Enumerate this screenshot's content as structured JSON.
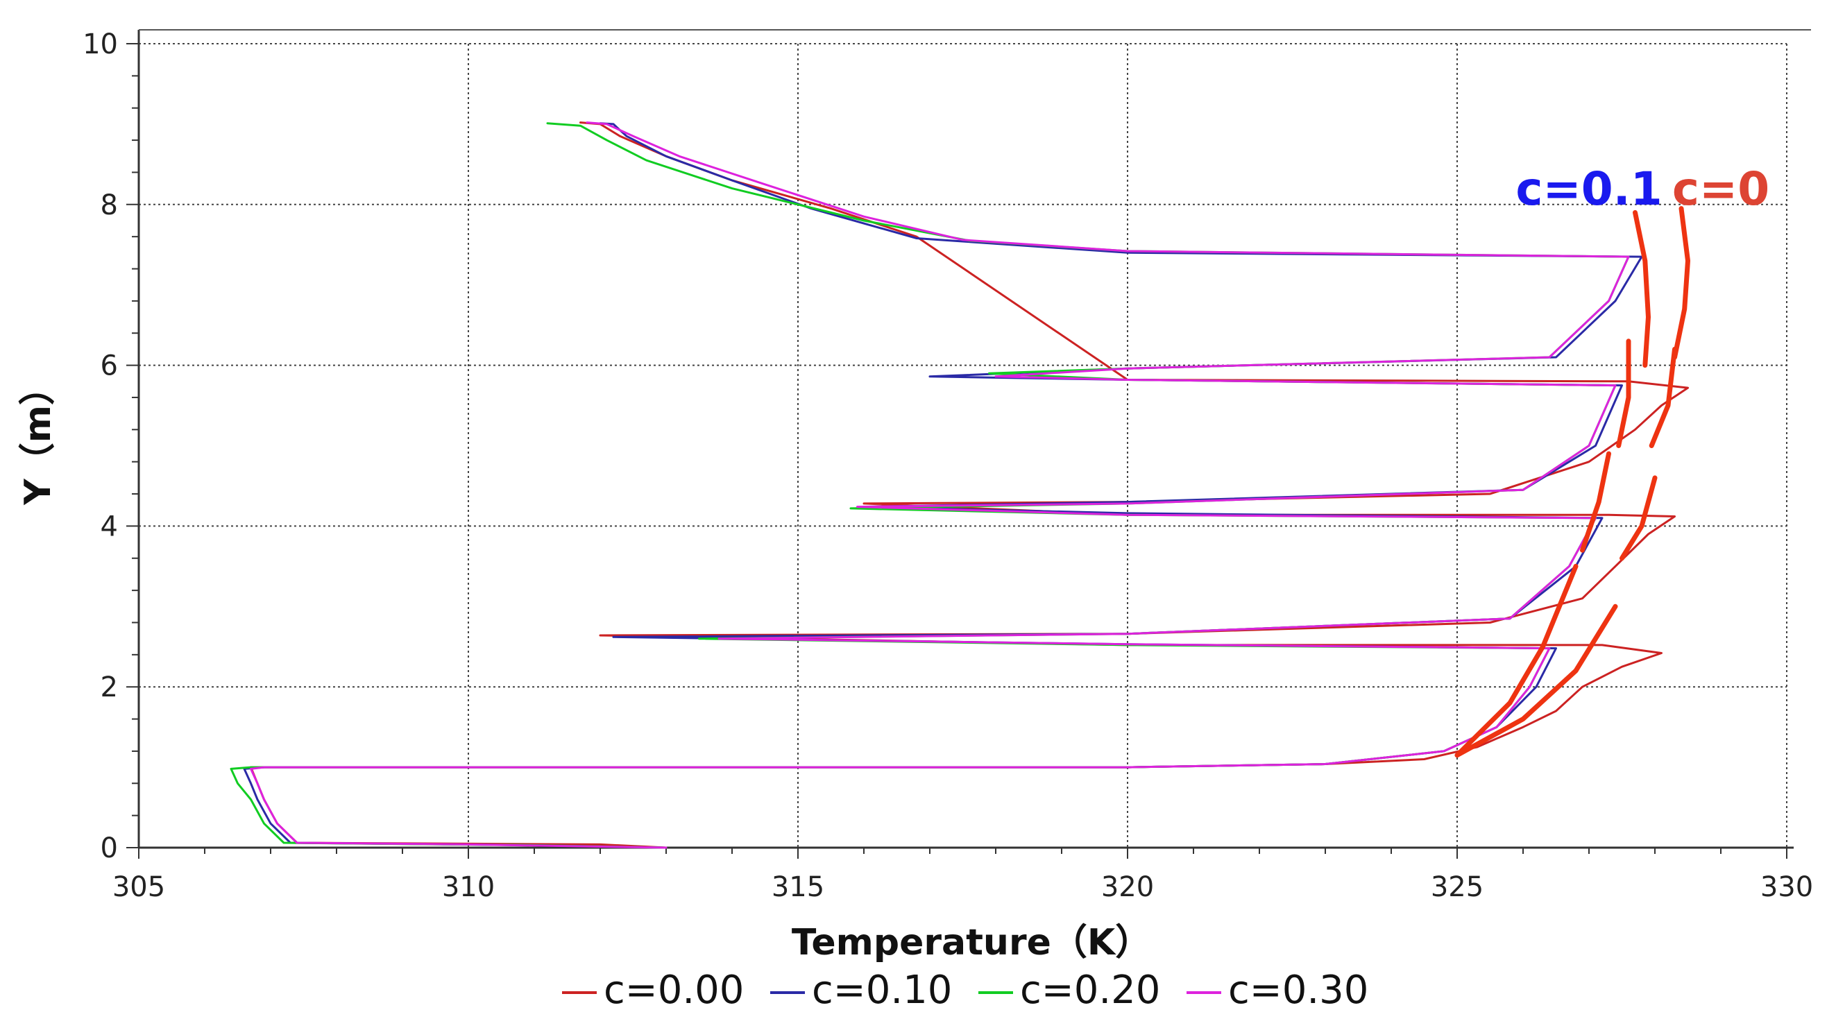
{
  "chart_data": {
    "type": "line",
    "title": "",
    "xlabel": "Temperature（K）",
    "ylabel": "Y（m）",
    "xlim": [
      305,
      330
    ],
    "ylim": [
      0,
      10
    ],
    "xticks": [
      "305",
      "310",
      "315",
      "320",
      "325",
      "330"
    ],
    "yticks": [
      "0",
      "2",
      "4",
      "6",
      "8",
      "10"
    ],
    "grid": true,
    "legend_position": "bottom",
    "series": [
      {
        "name": "c=0.00",
        "color": "#cc2222",
        "x": [
          313.0,
          312.0,
          307.4,
          307.1,
          306.9,
          306.8,
          306.7,
          306.9,
          320.0,
          323.0,
          324.5,
          325.3,
          326.0,
          326.5,
          326.9,
          327.5,
          328.1,
          327.2,
          320.0,
          312.0,
          320.0,
          325.5,
          326.9,
          327.4,
          327.9,
          328.3,
          327.3,
          320.0,
          316.0,
          320.0,
          325.5,
          327.0,
          327.7,
          328.1,
          328.5,
          327.6,
          320.0,
          316.8,
          315.5,
          314.0,
          313.0,
          312.3,
          312.0,
          311.7
        ],
        "y": [
          0.0,
          0.04,
          0.06,
          0.3,
          0.6,
          0.8,
          1.0,
          1.0,
          1.0,
          1.04,
          1.1,
          1.25,
          1.5,
          1.7,
          2.0,
          2.25,
          2.42,
          2.52,
          2.52,
          2.64,
          2.66,
          2.8,
          3.1,
          3.5,
          3.9,
          4.12,
          4.14,
          4.14,
          4.28,
          4.3,
          4.4,
          4.8,
          5.2,
          5.5,
          5.72,
          5.8,
          5.82,
          7.6,
          7.95,
          8.3,
          8.6,
          8.85,
          9.0,
          9.02
        ]
      },
      {
        "name": "c=0.10",
        "color": "#2a2aa6",
        "x": [
          313.0,
          311.0,
          307.3,
          307.0,
          306.8,
          306.7,
          306.6,
          306.9,
          320.0,
          323.0,
          324.8,
          325.6,
          326.2,
          326.5,
          320.0,
          312.2,
          320.0,
          325.8,
          326.8,
          327.2,
          320.0,
          316.0,
          320.0,
          326.0,
          327.1,
          327.5,
          320.0,
          317.0,
          320.0,
          326.5,
          327.4,
          327.8,
          320.0,
          316.8,
          315.2,
          314.0,
          313.0,
          312.4,
          312.2,
          312.0
        ],
        "y": [
          0.0,
          0.03,
          0.06,
          0.3,
          0.6,
          0.8,
          0.98,
          1.0,
          1.0,
          1.04,
          1.2,
          1.5,
          2.0,
          2.48,
          2.53,
          2.62,
          2.66,
          2.85,
          3.5,
          4.1,
          4.16,
          4.24,
          4.3,
          4.45,
          5.0,
          5.75,
          5.82,
          5.86,
          5.96,
          6.1,
          6.8,
          7.35,
          7.4,
          7.58,
          7.95,
          8.3,
          8.6,
          8.85,
          9.0,
          9.01
        ]
      },
      {
        "name": "c=0.20",
        "color": "#11cc22",
        "x": [
          313.0,
          311.0,
          307.2,
          306.9,
          306.7,
          306.5,
          306.4,
          306.7,
          320.0,
          323.0,
          324.8,
          325.6,
          326.1,
          326.4,
          320.0,
          313.5,
          320.0,
          325.8,
          326.7,
          327.1,
          320.0,
          315.8,
          320.0,
          326.0,
          327.0,
          327.4,
          320.0,
          317.9,
          320.0,
          326.4,
          327.3,
          327.6,
          320.0,
          317.6,
          316.0,
          314.0,
          312.7,
          312.1,
          311.7,
          311.2
        ],
        "y": [
          0.0,
          0.03,
          0.06,
          0.3,
          0.6,
          0.8,
          0.98,
          1.0,
          1.0,
          1.04,
          1.2,
          1.5,
          2.0,
          2.48,
          2.52,
          2.6,
          2.66,
          2.85,
          3.5,
          4.1,
          4.14,
          4.22,
          4.28,
          4.45,
          5.0,
          5.75,
          5.82,
          5.9,
          5.96,
          6.1,
          6.8,
          7.35,
          7.42,
          7.55,
          7.8,
          8.2,
          8.55,
          8.8,
          8.98,
          9.01
        ]
      },
      {
        "name": "c=0.30",
        "color": "#dd22dd",
        "x": [
          313.0,
          310.0,
          307.4,
          307.1,
          306.9,
          306.8,
          306.7,
          306.9,
          320.0,
          323.0,
          324.8,
          325.6,
          326.1,
          326.4,
          320.0,
          313.8,
          320.0,
          325.8,
          326.7,
          327.1,
          320.0,
          315.9,
          320.0,
          326.0,
          327.0,
          327.4,
          320.0,
          318.0,
          320.0,
          326.4,
          327.3,
          327.6,
          320.0,
          317.5,
          316.0,
          314.5,
          313.2,
          312.5,
          312.1,
          311.8
        ],
        "y": [
          0.0,
          0.04,
          0.06,
          0.3,
          0.6,
          0.8,
          0.98,
          1.0,
          1.0,
          1.04,
          1.2,
          1.5,
          2.0,
          2.48,
          2.53,
          2.6,
          2.66,
          2.85,
          3.5,
          4.1,
          4.14,
          4.24,
          4.28,
          4.45,
          5.0,
          5.75,
          5.82,
          5.86,
          5.96,
          6.1,
          6.8,
          7.35,
          7.42,
          7.56,
          7.85,
          8.25,
          8.6,
          8.85,
          9.0,
          9.02
        ]
      }
    ],
    "annotations": [
      {
        "text": "c=0.1",
        "color": "#1a1aee",
        "x": 327.0,
        "y": 8.0
      },
      {
        "text": "c=0",
        "color": "#dd4433",
        "x": 329.0,
        "y": 8.0
      }
    ],
    "annotation_strokes": [
      {
        "color": "#ee3311",
        "x": [
          327.7,
          327.85,
          327.9,
          327.85
        ],
        "y": [
          7.9,
          7.3,
          6.6,
          6.0
        ]
      },
      {
        "color": "#ee3311",
        "x": [
          328.4,
          328.5,
          328.45,
          328.3
        ],
        "y": [
          7.95,
          7.3,
          6.7,
          6.1
        ]
      },
      {
        "color": "#ee3311",
        "x": [
          327.6,
          327.6,
          327.45
        ],
        "y": [
          6.3,
          5.6,
          5.0
        ]
      },
      {
        "color": "#ee3311",
        "x": [
          328.3,
          328.2,
          327.95
        ],
        "y": [
          6.2,
          5.5,
          5.0
        ]
      },
      {
        "color": "#ee3311",
        "x": [
          327.3,
          327.15,
          326.9
        ],
        "y": [
          4.9,
          4.3,
          3.7
        ]
      },
      {
        "color": "#ee3311",
        "x": [
          328.0,
          327.8,
          327.5
        ],
        "y": [
          4.6,
          4.0,
          3.6
        ]
      },
      {
        "color": "#ee3311",
        "x": [
          326.8,
          326.3,
          325.8,
          325.0
        ],
        "y": [
          3.5,
          2.5,
          1.8,
          1.15
        ]
      },
      {
        "color": "#ee3311",
        "x": [
          327.4,
          326.8,
          326.0,
          325.0
        ],
        "y": [
          3.0,
          2.2,
          1.6,
          1.15
        ]
      }
    ]
  }
}
